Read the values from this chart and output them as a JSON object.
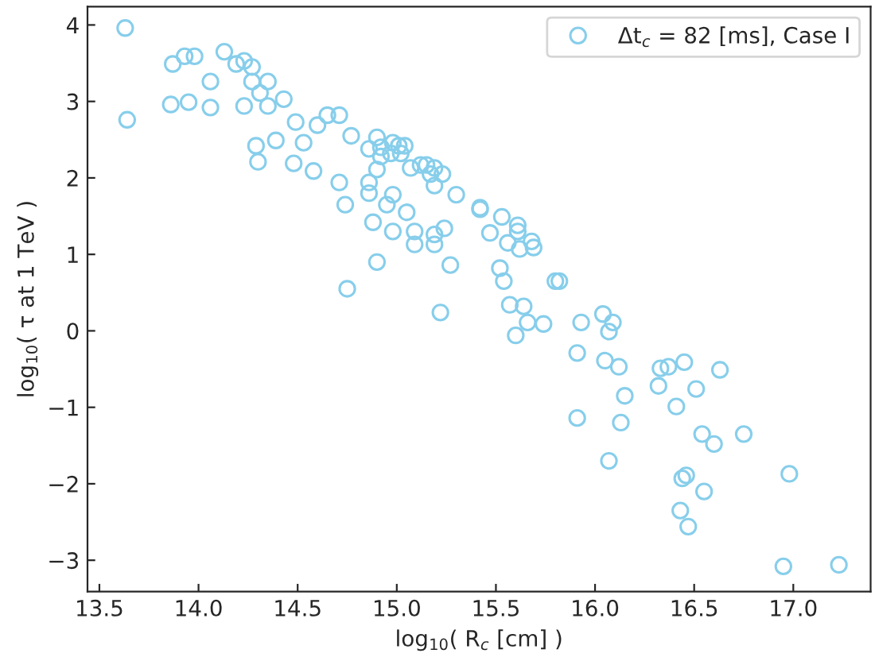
{
  "chart_data": {
    "type": "scatter",
    "xlabel": "log$_{10}$( R$_{c}$ [cm] )",
    "ylabel": "log$_{10}$( τ at 1 TeV )",
    "xlim": [
      13.44,
      17.39
    ],
    "ylim": [
      -3.41,
      4.24
    ],
    "xticks": [
      13.5,
      {
        "value": 14,
        "label": "14.0"
      },
      14.5,
      {
        "value": 15,
        "label": "15.0"
      },
      15.5,
      {
        "value": 16,
        "label": "16.0"
      },
      16.5,
      {
        "value": 17,
        "label": "17.0"
      }
    ],
    "yticks": [
      {
        "value": -3,
        "label": "−3"
      },
      {
        "value": -2,
        "label": "−2"
      },
      {
        "value": -1,
        "label": "−1"
      },
      0,
      1,
      2,
      3,
      4
    ],
    "marker": "circle",
    "legend": "top right",
    "grid": false,
    "series": [
      {
        "name": "Δt$_{c}$ = 82 [ms], Case I",
        "color": "#87ceeb",
        "x": [
          13.63,
          13.64,
          13.87,
          13.93,
          13.98,
          13.86,
          13.95,
          14.06,
          14.06,
          14.13,
          14.19,
          14.23,
          14.27,
          14.27,
          14.35,
          14.31,
          14.35,
          14.23,
          14.43,
          14.49,
          14.6,
          14.65,
          14.71,
          14.77,
          14.53,
          14.39,
          14.29,
          14.3,
          14.48,
          14.58,
          14.71,
          14.74,
          14.88,
          14.9,
          14.75,
          15.22,
          14.9,
          14.86,
          14.92,
          14.98,
          15.01,
          15.04,
          14.97,
          15.02,
          14.92,
          14.9,
          14.86,
          14.86,
          14.98,
          14.95,
          15.05,
          14.98,
          15.09,
          15.19,
          15.24,
          15.09,
          15.19,
          15.27,
          15.07,
          15.12,
          15.15,
          15.19,
          15.17,
          15.23,
          15.19,
          15.3,
          15.42,
          15.42,
          15.53,
          15.61,
          15.61,
          15.47,
          15.56,
          15.68,
          15.62,
          15.69,
          15.52,
          15.54,
          15.8,
          15.82,
          15.57,
          15.64,
          16.04,
          15.66,
          15.74,
          15.6,
          15.93,
          16.09,
          16.07,
          15.91,
          16.05,
          16.12,
          16.33,
          16.37,
          16.45,
          16.63,
          16.32,
          16.51,
          16.15,
          16.41,
          15.91,
          16.13,
          16.54,
          16.6,
          16.75,
          16.07,
          16.46,
          16.44,
          16.55,
          16.98,
          16.43,
          16.47,
          16.95,
          17.23
        ],
        "values": [
          3.96,
          2.76,
          3.49,
          3.59,
          3.59,
          2.96,
          2.99,
          3.26,
          2.92,
          3.65,
          3.49,
          3.53,
          3.45,
          3.26,
          3.26,
          3.11,
          2.94,
          2.94,
          3.03,
          2.73,
          2.69,
          2.82,
          2.82,
          2.55,
          2.46,
          2.49,
          2.42,
          2.21,
          2.19,
          2.09,
          1.94,
          1.65,
          1.42,
          0.9,
          0.55,
          0.24,
          2.53,
          2.38,
          2.4,
          2.46,
          2.42,
          2.42,
          2.32,
          2.32,
          2.28,
          2.11,
          1.94,
          1.8,
          1.78,
          1.65,
          1.55,
          1.3,
          1.3,
          1.26,
          1.34,
          1.13,
          1.13,
          0.86,
          2.13,
          2.17,
          2.17,
          2.13,
          2.05,
          2.05,
          1.9,
          1.78,
          1.61,
          1.59,
          1.49,
          1.38,
          1.3,
          1.28,
          1.15,
          1.17,
          1.07,
          1.09,
          0.82,
          0.65,
          0.65,
          0.65,
          0.34,
          0.32,
          0.22,
          0.11,
          0.09,
          -0.06,
          0.11,
          0.11,
          -0.01,
          -0.29,
          -0.39,
          -0.47,
          -0.49,
          -0.47,
          -0.41,
          -0.51,
          -0.72,
          -0.76,
          -0.85,
          -0.99,
          -1.14,
          -1.2,
          -1.35,
          -1.48,
          -1.35,
          -1.7,
          -1.89,
          -1.93,
          -2.1,
          -1.87,
          -2.35,
          -2.56,
          -3.08,
          -3.06
        ]
      }
    ]
  }
}
